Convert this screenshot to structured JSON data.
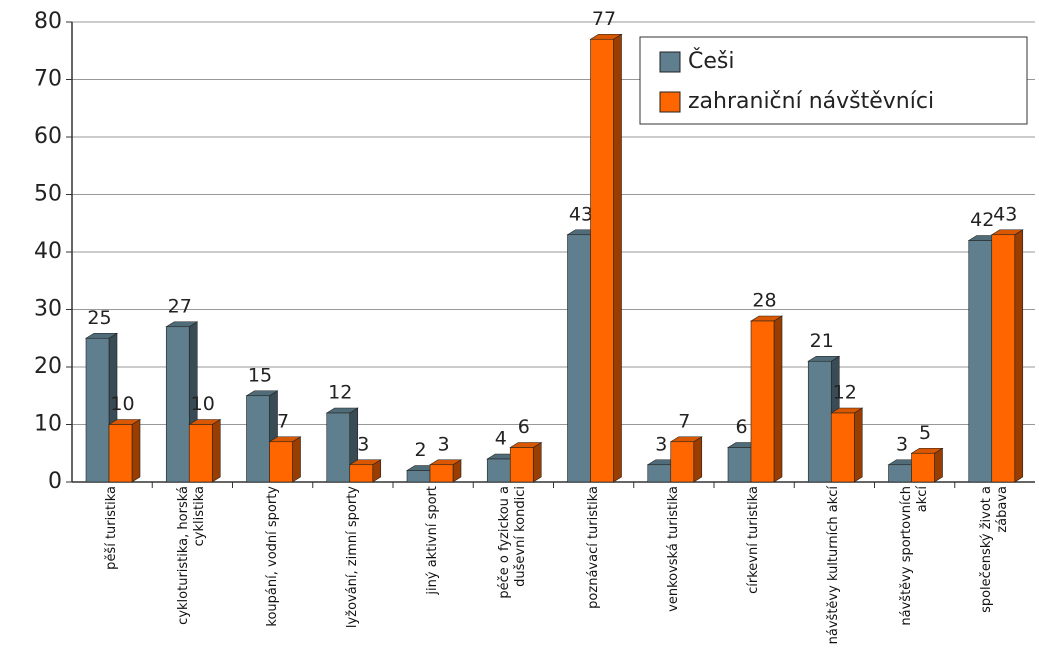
{
  "chart_data": {
    "type": "bar",
    "categories": [
      "pěší turistika",
      "cykloturistika, horská cyklistika",
      "koupání, vodní sporty",
      "lyžování, zimní sporty",
      "jiný aktivní sport",
      "péče o fyzickou a duševní kondici",
      "poznávací turistika",
      "venkovská turistika",
      "církevní turistika",
      "návštěvy kulturních akcí",
      "návštěvy sportovních akcí",
      "společenský život a zábava"
    ],
    "series": [
      {
        "name": "Češi",
        "color": "#5f7f8e",
        "values": [
          25,
          27,
          15,
          12,
          2,
          4,
          43,
          3,
          6,
          21,
          3,
          42
        ]
      },
      {
        "name": "zahraniční návštěvníci",
        "color": "#ff6600",
        "values": [
          10,
          10,
          7,
          3,
          3,
          6,
          77,
          7,
          28,
          12,
          5,
          43
        ]
      }
    ],
    "ylim": [
      0,
      80
    ],
    "yticks": [
      0,
      10,
      20,
      30,
      40,
      50,
      60,
      70,
      80
    ],
    "grid": true,
    "legend": "top-right"
  }
}
